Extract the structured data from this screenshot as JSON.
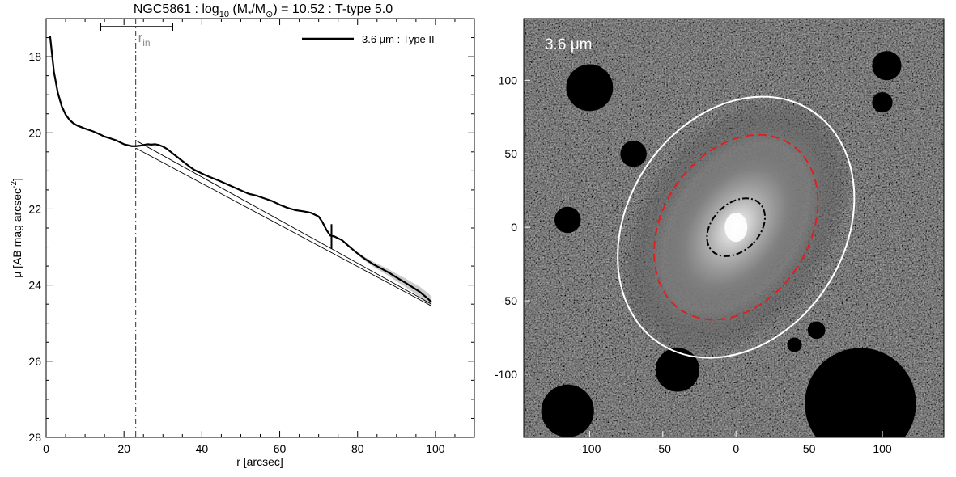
{
  "chart_data": [
    {
      "type": "line",
      "title": {
        "main": "NGC5861 : log",
        "sub": "10",
        "mid": " (M",
        "sub2": "*",
        "mid2": "/M",
        "sun": "⊙",
        "rest": ") = 10.52 : T-type 5.0"
      },
      "xlabel": "r [arcsec]",
      "ylabel": "μ [AB mag arcsec",
      "ylabel_sup": "-2",
      "ylabel_end": "]",
      "xlim": [
        0,
        110
      ],
      "ylim": [
        28,
        17
      ],
      "xticks": [
        0,
        20,
        40,
        60,
        80,
        100
      ],
      "yticks": [
        18,
        20,
        22,
        24,
        26,
        28
      ],
      "grid": false,
      "legend": {
        "placement": "top-right",
        "label": "3.6 μm : Type II"
      },
      "r_in_label": {
        "main": "r",
        "sub": "in"
      },
      "r_in": 23.0,
      "r_in_range": [
        14.0,
        32.5
      ],
      "r_break": 73.3,
      "series": [
        {
          "name": "3.6 μm : Type II",
          "x": [
            1,
            2,
            3,
            4,
            5,
            6,
            7,
            8,
            9,
            10,
            12,
            14,
            15,
            16,
            18,
            20,
            22,
            23,
            24,
            25,
            26,
            27,
            28,
            29,
            30,
            31,
            32,
            33,
            34,
            35,
            36,
            37,
            38,
            40,
            42,
            44,
            46,
            48,
            50,
            52,
            54,
            56,
            58,
            60,
            62,
            64,
            66,
            68,
            70,
            71,
            72,
            73,
            74,
            76,
            78,
            80,
            82,
            84,
            86,
            88,
            90,
            92,
            94,
            96,
            98,
            99
          ],
          "y": [
            17.45,
            18.4,
            18.95,
            19.3,
            19.52,
            19.66,
            19.75,
            19.81,
            19.85,
            19.89,
            19.96,
            20.05,
            20.1,
            20.13,
            20.2,
            20.3,
            20.35,
            20.35,
            20.34,
            20.32,
            20.3,
            20.31,
            20.3,
            20.32,
            20.36,
            20.42,
            20.5,
            20.58,
            20.66,
            20.74,
            20.82,
            20.9,
            20.97,
            21.07,
            21.16,
            21.24,
            21.33,
            21.42,
            21.51,
            21.6,
            21.65,
            21.72,
            21.79,
            21.89,
            21.97,
            22.03,
            22.06,
            22.1,
            22.2,
            22.35,
            22.55,
            22.7,
            22.72,
            22.82,
            23.0,
            23.17,
            23.32,
            23.45,
            23.56,
            23.67,
            23.8,
            23.92,
            24.05,
            24.18,
            24.35,
            24.45
          ]
        },
        {
          "name": "",
          "x": [
            23,
            99
          ],
          "y": [
            20.2,
            24.5
          ]
        },
        {
          "name": "",
          "x": [
            23,
            99
          ],
          "y": [
            20.4,
            24.55
          ]
        }
      ]
    },
    {
      "type": "heatmap",
      "band_label": "3.6 μm",
      "xlim": [
        -145,
        142
      ],
      "ylim": [
        -143,
        142
      ],
      "xticks": [
        -100,
        -50,
        0,
        50,
        100
      ],
      "yticks": [
        100,
        50,
        0,
        -50,
        -100
      ],
      "grid": false,
      "colors": {
        "outer_ellipse": "#ffffff",
        "disk_ellipse": "#e02020",
        "bulge_ellipse": "#000000"
      },
      "ellipses": [
        {
          "name": "outer",
          "center": [
            0,
            0
          ],
          "semi_major": 95,
          "semi_minor": 74,
          "pa_deg": 33,
          "style": "solid"
        },
        {
          "name": "disk",
          "center": [
            0,
            0
          ],
          "semi_major": 68,
          "semi_minor": 50,
          "pa_deg": 33,
          "style": "dashed"
        },
        {
          "name": "bulge",
          "center": [
            0,
            0
          ],
          "semi_major": 23,
          "semi_minor": 16,
          "pa_deg": 45,
          "style": "dashdot"
        }
      ]
    }
  ]
}
